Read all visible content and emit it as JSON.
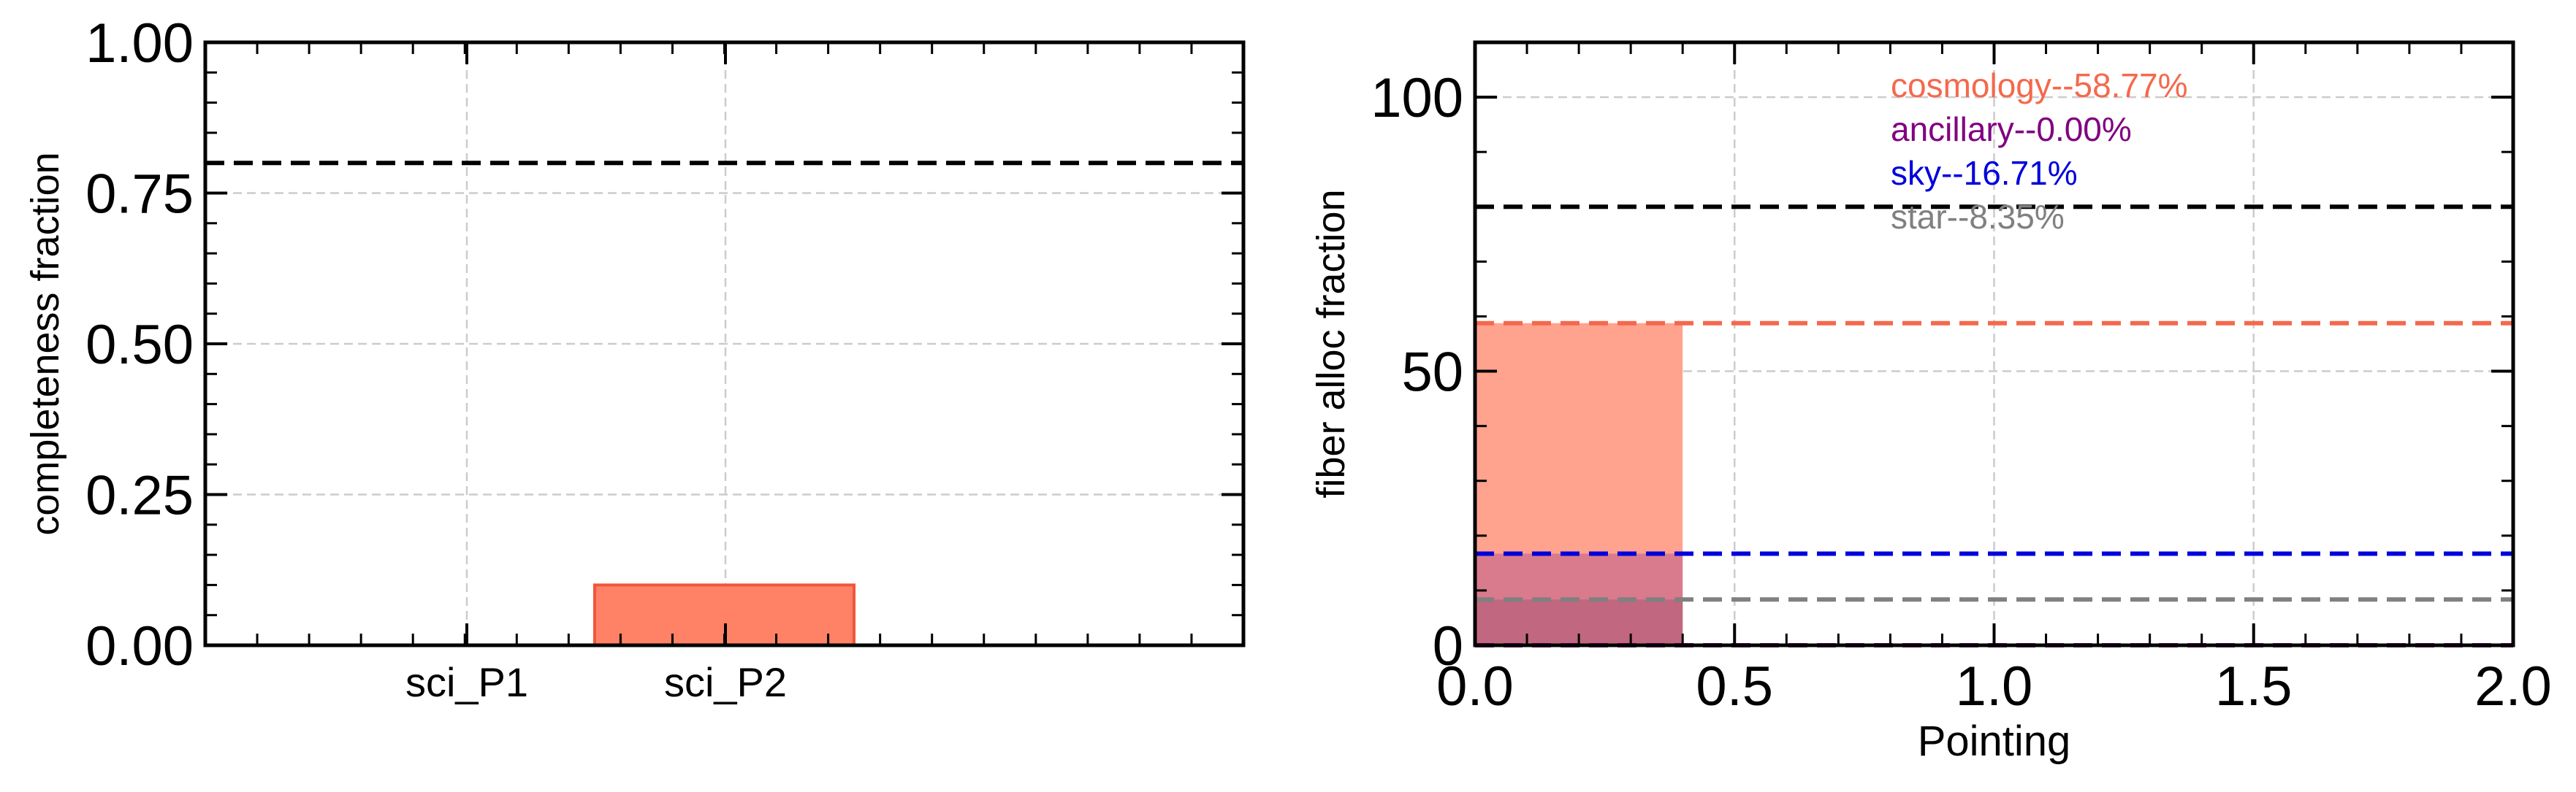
{
  "chart_data": [
    {
      "type": "bar",
      "title": "",
      "xlabel": "",
      "ylabel": "completeness fraction",
      "ylim": [
        0,
        1.0
      ],
      "categories": [
        "sci_P1",
        "sci_P2"
      ],
      "values": [
        0.0,
        0.1
      ],
      "yticks": [
        "0.00",
        "0.25",
        "0.50",
        "0.75",
        "1.00"
      ],
      "threshold": 0.8,
      "grid": true,
      "colors": {
        "bar": "#ff8166",
        "bar_edge": "#f2553a",
        "threshold": "#000000",
        "grid": "#cccccc"
      }
    },
    {
      "type": "bar",
      "title": "",
      "xlabel": "Pointing",
      "ylabel": "fiber alloc fraction",
      "xlim": [
        0,
        2.0
      ],
      "ylim": [
        0,
        110
      ],
      "xticks": [
        "0.0",
        "0.5",
        "1.0",
        "1.5",
        "2.0"
      ],
      "yticks": [
        "0",
        "50",
        "100"
      ],
      "threshold": 80,
      "grid": true,
      "series": [
        {
          "name": "cosmology--58.77%",
          "value": 58.77,
          "x": 0.0,
          "width": 0.4,
          "color": "#f4694d",
          "fill": "#ffa28e"
        },
        {
          "name": "ancillary--0.00%",
          "value": 0.0,
          "x": 0.0,
          "width": 0.4,
          "color": "#800080",
          "fill": "#800080"
        },
        {
          "name": "sky--16.71%",
          "value": 16.71,
          "x": 0.0,
          "width": 0.4,
          "color": "#0000dd",
          "fill": "#c0608a"
        },
        {
          "name": "star--8.35%",
          "value": 8.35,
          "x": 0.0,
          "width": 0.4,
          "color": "#808080",
          "fill": "#b05a78"
        }
      ],
      "colors": {
        "threshold": "#000000",
        "grid": "#cccccc"
      }
    }
  ]
}
